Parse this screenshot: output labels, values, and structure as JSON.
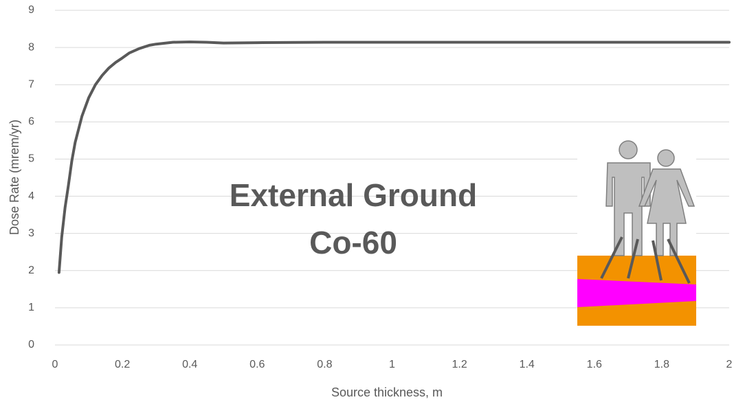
{
  "chart_data": {
    "type": "line",
    "x_label": "Source thickness, m",
    "y_label": "Dose Rate (mrem/yr)",
    "annotation_lines": [
      "External Ground",
      "Co-60"
    ],
    "series": [
      {
        "color": "#595959",
        "x": [
          0.012,
          0.02,
          0.03,
          0.04,
          0.05,
          0.06,
          0.08,
          0.1,
          0.12,
          0.14,
          0.16,
          0.18,
          0.2,
          0.22,
          0.25,
          0.28,
          0.3,
          0.35,
          0.4,
          0.45,
          0.5,
          0.6,
          0.8,
          1.0,
          1.5,
          2.0
        ],
        "values": [
          1.95,
          2.9,
          3.7,
          4.3,
          4.95,
          5.45,
          6.15,
          6.65,
          7.0,
          7.25,
          7.45,
          7.6,
          7.72,
          7.85,
          7.97,
          8.06,
          8.09,
          8.14,
          8.15,
          8.14,
          8.12,
          8.13,
          8.14,
          8.14,
          8.14,
          8.14
        ]
      }
    ],
    "xlim": [
      0,
      2
    ],
    "xticks": [
      0,
      0.2,
      0.4,
      0.6,
      0.8,
      1,
      1.2,
      1.4,
      1.6,
      1.8,
      2
    ],
    "ylim": [
      0,
      9
    ],
    "yticks": [
      0,
      1,
      2,
      3,
      4,
      5,
      6,
      7,
      8,
      9
    ],
    "grid": true
  }
}
